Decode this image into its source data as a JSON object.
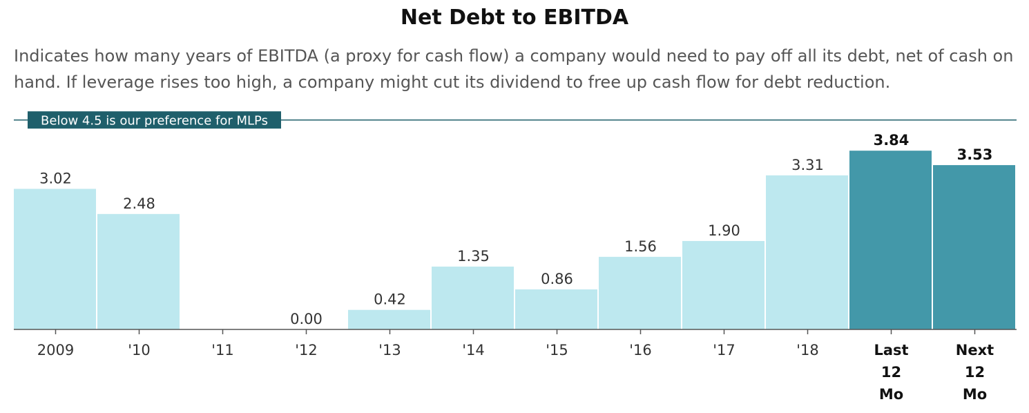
{
  "chart_data": {
    "type": "bar",
    "title": "Net Debt to EBITDA",
    "subtitle": "Indicates how many years of EBITDA (a proxy for cash flow) a company would need to pay off all its debt, net of cash on hand. If leverage rises too high, a company might cut its dividend to free up cash flow for debt reduction.",
    "categories": [
      "2009",
      "'10",
      "'11",
      "'12",
      "'13",
      "'14",
      "'15",
      "'16",
      "'17",
      "'18",
      "Last 12 Mo",
      "Next 12 Mo"
    ],
    "values": [
      3.02,
      2.48,
      null,
      0.0,
      0.42,
      1.35,
      0.86,
      1.56,
      1.9,
      3.31,
      3.84,
      3.53
    ],
    "value_labels": [
      "3.02",
      "2.48",
      "",
      "0.00",
      "0.42",
      "1.35",
      "0.86",
      "1.56",
      "1.90",
      "3.31",
      "3.84",
      "3.53"
    ],
    "highlighted": [
      false,
      false,
      false,
      false,
      false,
      false,
      false,
      false,
      false,
      false,
      true,
      true
    ],
    "reference_line": {
      "value": 4.5,
      "label": "Below 4.5 is our preference for MLPs"
    },
    "ylim": [
      0,
      4.5
    ],
    "grid": false,
    "xlabel": "",
    "ylabel": "",
    "colors": {
      "bar": "#bde8ef",
      "bar_highlight": "#4398a9",
      "reference_line": "#1f5f6b",
      "reference_label_bg": "#1f5f6b",
      "reference_label_text": "#ffffff",
      "axis": "#555555"
    }
  }
}
